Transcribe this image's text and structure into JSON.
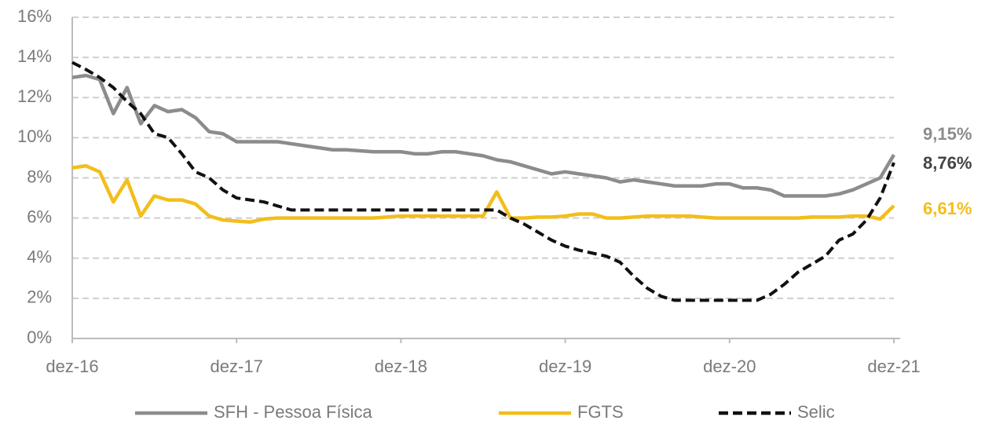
{
  "chart_data": {
    "type": "line",
    "categories": [
      "dez-16",
      null,
      null,
      null,
      null,
      null,
      null,
      null,
      null,
      null,
      null,
      null,
      "dez-17",
      null,
      null,
      null,
      null,
      null,
      null,
      null,
      null,
      null,
      null,
      null,
      "dez-18",
      null,
      null,
      null,
      null,
      null,
      null,
      null,
      null,
      null,
      null,
      null,
      "dez-19",
      null,
      null,
      null,
      null,
      null,
      null,
      null,
      null,
      null,
      null,
      null,
      "dez-20",
      null,
      null,
      null,
      null,
      null,
      null,
      null,
      null,
      null,
      null,
      null,
      "dez-21"
    ],
    "series": [
      {
        "name": "SFH - Pessoa Física",
        "color": "#8c8c8c",
        "dashed": false,
        "values": [
          13.0,
          13.1,
          12.9,
          11.2,
          12.5,
          10.7,
          11.6,
          11.3,
          11.4,
          11.0,
          10.3,
          10.2,
          9.8,
          9.8,
          9.8,
          9.8,
          9.7,
          9.6,
          9.5,
          9.4,
          9.4,
          9.35,
          9.3,
          9.3,
          9.3,
          9.2,
          9.2,
          9.3,
          9.3,
          9.2,
          9.1,
          8.9,
          8.8,
          8.6,
          8.4,
          8.2,
          8.3,
          8.2,
          8.1,
          8.0,
          7.8,
          7.9,
          7.8,
          7.7,
          7.6,
          7.6,
          7.6,
          7.7,
          7.7,
          7.5,
          7.5,
          7.4,
          7.1,
          7.1,
          7.1,
          7.1,
          7.2,
          7.4,
          7.7,
          8.0,
          9.15
        ],
        "value_labels": [
          null,
          null,
          null,
          null,
          null,
          null,
          null,
          null,
          null,
          null,
          null,
          null,
          null,
          null,
          null,
          null,
          null,
          null,
          null,
          null,
          null,
          null,
          null,
          null,
          null,
          null,
          null,
          null,
          null,
          null,
          null,
          null,
          null,
          null,
          null,
          null,
          null,
          null,
          null,
          null,
          null,
          null,
          null,
          null,
          null,
          null,
          null,
          null,
          null,
          null,
          null,
          null,
          null,
          null,
          null,
          null,
          null,
          null,
          null,
          null,
          "9,15%"
        ]
      },
      {
        "name": "FGTS",
        "color": "#f2be1a",
        "dashed": false,
        "values": [
          8.5,
          8.6,
          8.3,
          6.8,
          7.9,
          6.1,
          7.1,
          6.9,
          6.9,
          6.7,
          6.1,
          5.9,
          5.85,
          5.8,
          5.95,
          6.0,
          6.0,
          6.0,
          6.0,
          6.0,
          6.0,
          6.0,
          6.0,
          6.05,
          6.1,
          6.1,
          6.1,
          6.1,
          6.1,
          6.1,
          6.1,
          7.3,
          6.0,
          6.0,
          6.05,
          6.05,
          6.1,
          6.2,
          6.2,
          6.0,
          6.0,
          6.05,
          6.1,
          6.1,
          6.1,
          6.1,
          6.05,
          6.0,
          6.0,
          6.0,
          6.0,
          6.0,
          6.0,
          6.0,
          6.05,
          6.05,
          6.05,
          6.1,
          6.1,
          5.95,
          6.61
        ],
        "value_labels": [
          null,
          null,
          null,
          null,
          null,
          null,
          null,
          null,
          null,
          null,
          null,
          null,
          null,
          null,
          null,
          null,
          null,
          null,
          null,
          null,
          null,
          null,
          null,
          null,
          null,
          null,
          null,
          null,
          null,
          null,
          null,
          null,
          null,
          null,
          null,
          null,
          null,
          null,
          null,
          null,
          null,
          null,
          null,
          null,
          null,
          null,
          null,
          null,
          null,
          null,
          null,
          null,
          null,
          null,
          null,
          null,
          null,
          null,
          null,
          null,
          "6,61%"
        ]
      },
      {
        "name": "Selic",
        "color": "#111111",
        "dashed": true,
        "values": [
          13.75,
          13.4,
          13.0,
          12.5,
          11.8,
          11.2,
          10.2,
          10.0,
          9.2,
          8.3,
          8.0,
          7.4,
          7.0,
          6.9,
          6.8,
          6.6,
          6.4,
          6.4,
          6.4,
          6.4,
          6.4,
          6.4,
          6.4,
          6.4,
          6.4,
          6.4,
          6.4,
          6.4,
          6.4,
          6.4,
          6.4,
          6.4,
          6.0,
          5.7,
          5.3,
          4.9,
          4.6,
          4.4,
          4.25,
          4.1,
          3.8,
          3.1,
          2.5,
          2.1,
          1.9,
          1.9,
          1.9,
          1.9,
          1.9,
          1.9,
          1.9,
          2.2,
          2.7,
          3.3,
          3.7,
          4.1,
          4.9,
          5.2,
          5.9,
          7.0,
          8.76
        ],
        "value_labels": [
          null,
          null,
          null,
          null,
          null,
          null,
          null,
          null,
          null,
          null,
          null,
          null,
          null,
          null,
          null,
          null,
          null,
          null,
          null,
          null,
          null,
          null,
          null,
          null,
          null,
          null,
          null,
          null,
          null,
          null,
          null,
          null,
          null,
          null,
          null,
          null,
          null,
          null,
          null,
          null,
          null,
          null,
          null,
          null,
          null,
          null,
          null,
          null,
          null,
          null,
          null,
          null,
          null,
          null,
          null,
          null,
          null,
          null,
          null,
          null,
          "8,76%"
        ]
      }
    ],
    "ylim": [
      0,
      16
    ],
    "yticks": [
      {
        "value": 0,
        "label": "0%"
      },
      {
        "value": 2,
        "label": "2%"
      },
      {
        "value": 4,
        "label": "4%"
      },
      {
        "value": 6,
        "label": "6%"
      },
      {
        "value": 8,
        "label": "8%"
      },
      {
        "value": 10,
        "label": "10%"
      },
      {
        "value": 12,
        "label": "12%"
      },
      {
        "value": 14,
        "label": "14%"
      },
      {
        "value": 16,
        "label": "16%"
      }
    ],
    "grid": true,
    "legend": "bottom"
  }
}
